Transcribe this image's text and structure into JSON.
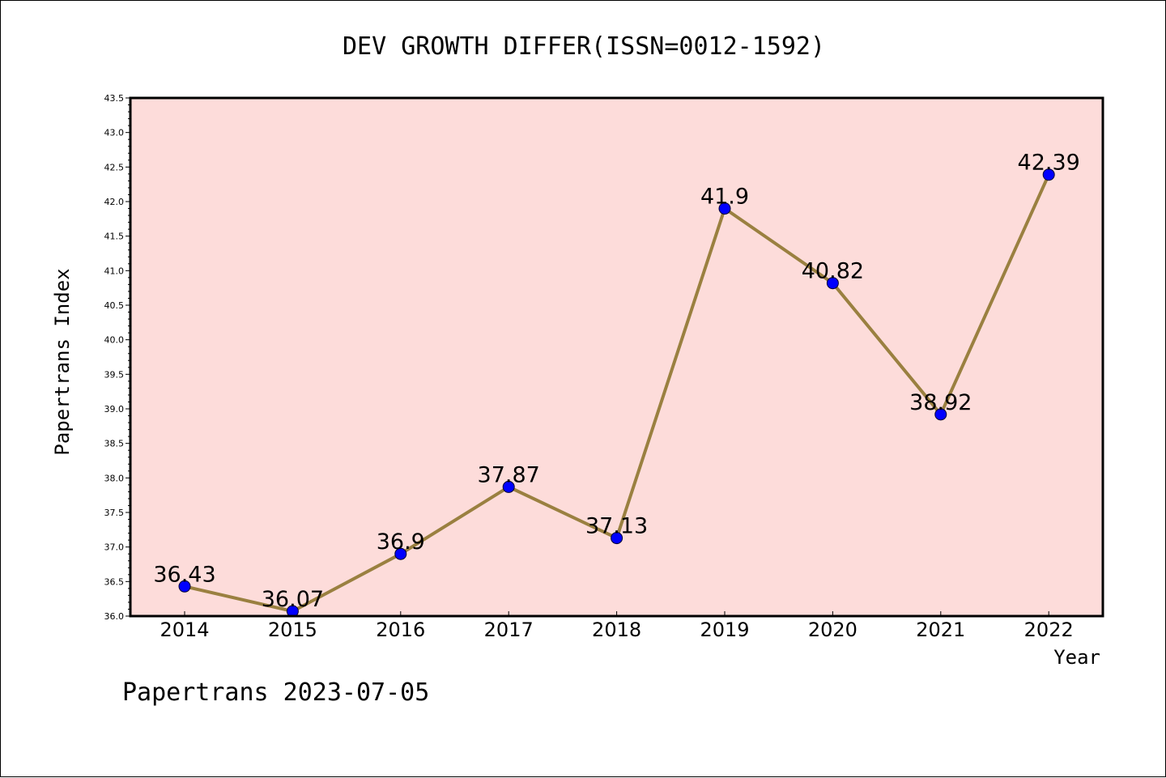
{
  "chart_data": {
    "type": "line",
    "title": "DEV GROWTH DIFFER(ISSN=0012-1592)",
    "xlabel": "Year",
    "ylabel": "Papertrans Index",
    "categories": [
      "2014",
      "2015",
      "2016",
      "2017",
      "2018",
      "2019",
      "2020",
      "2021",
      "2022"
    ],
    "values": [
      36.43,
      36.07,
      36.9,
      37.87,
      37.13,
      41.9,
      40.82,
      38.92,
      42.39
    ],
    "data_labels": [
      "36.43",
      "36.07",
      "36.9",
      "37.87",
      "37.13",
      "41.9",
      "40.82",
      "38.92",
      "42.39"
    ],
    "ylim": [
      36.0,
      43.5
    ],
    "y_ticks": [
      "36.0",
      "36.5",
      "37.0",
      "37.5",
      "38.0",
      "38.5",
      "39.0",
      "39.5",
      "40.0",
      "40.5",
      "41.0",
      "41.5",
      "42.0",
      "42.5",
      "43.0",
      "43.5"
    ],
    "grid": false,
    "legend": "none",
    "colors": {
      "plot_background": "#fddcda",
      "line": "#9a8040",
      "marker": "#0000ff"
    }
  },
  "footer": "Papertrans 2023-07-05"
}
